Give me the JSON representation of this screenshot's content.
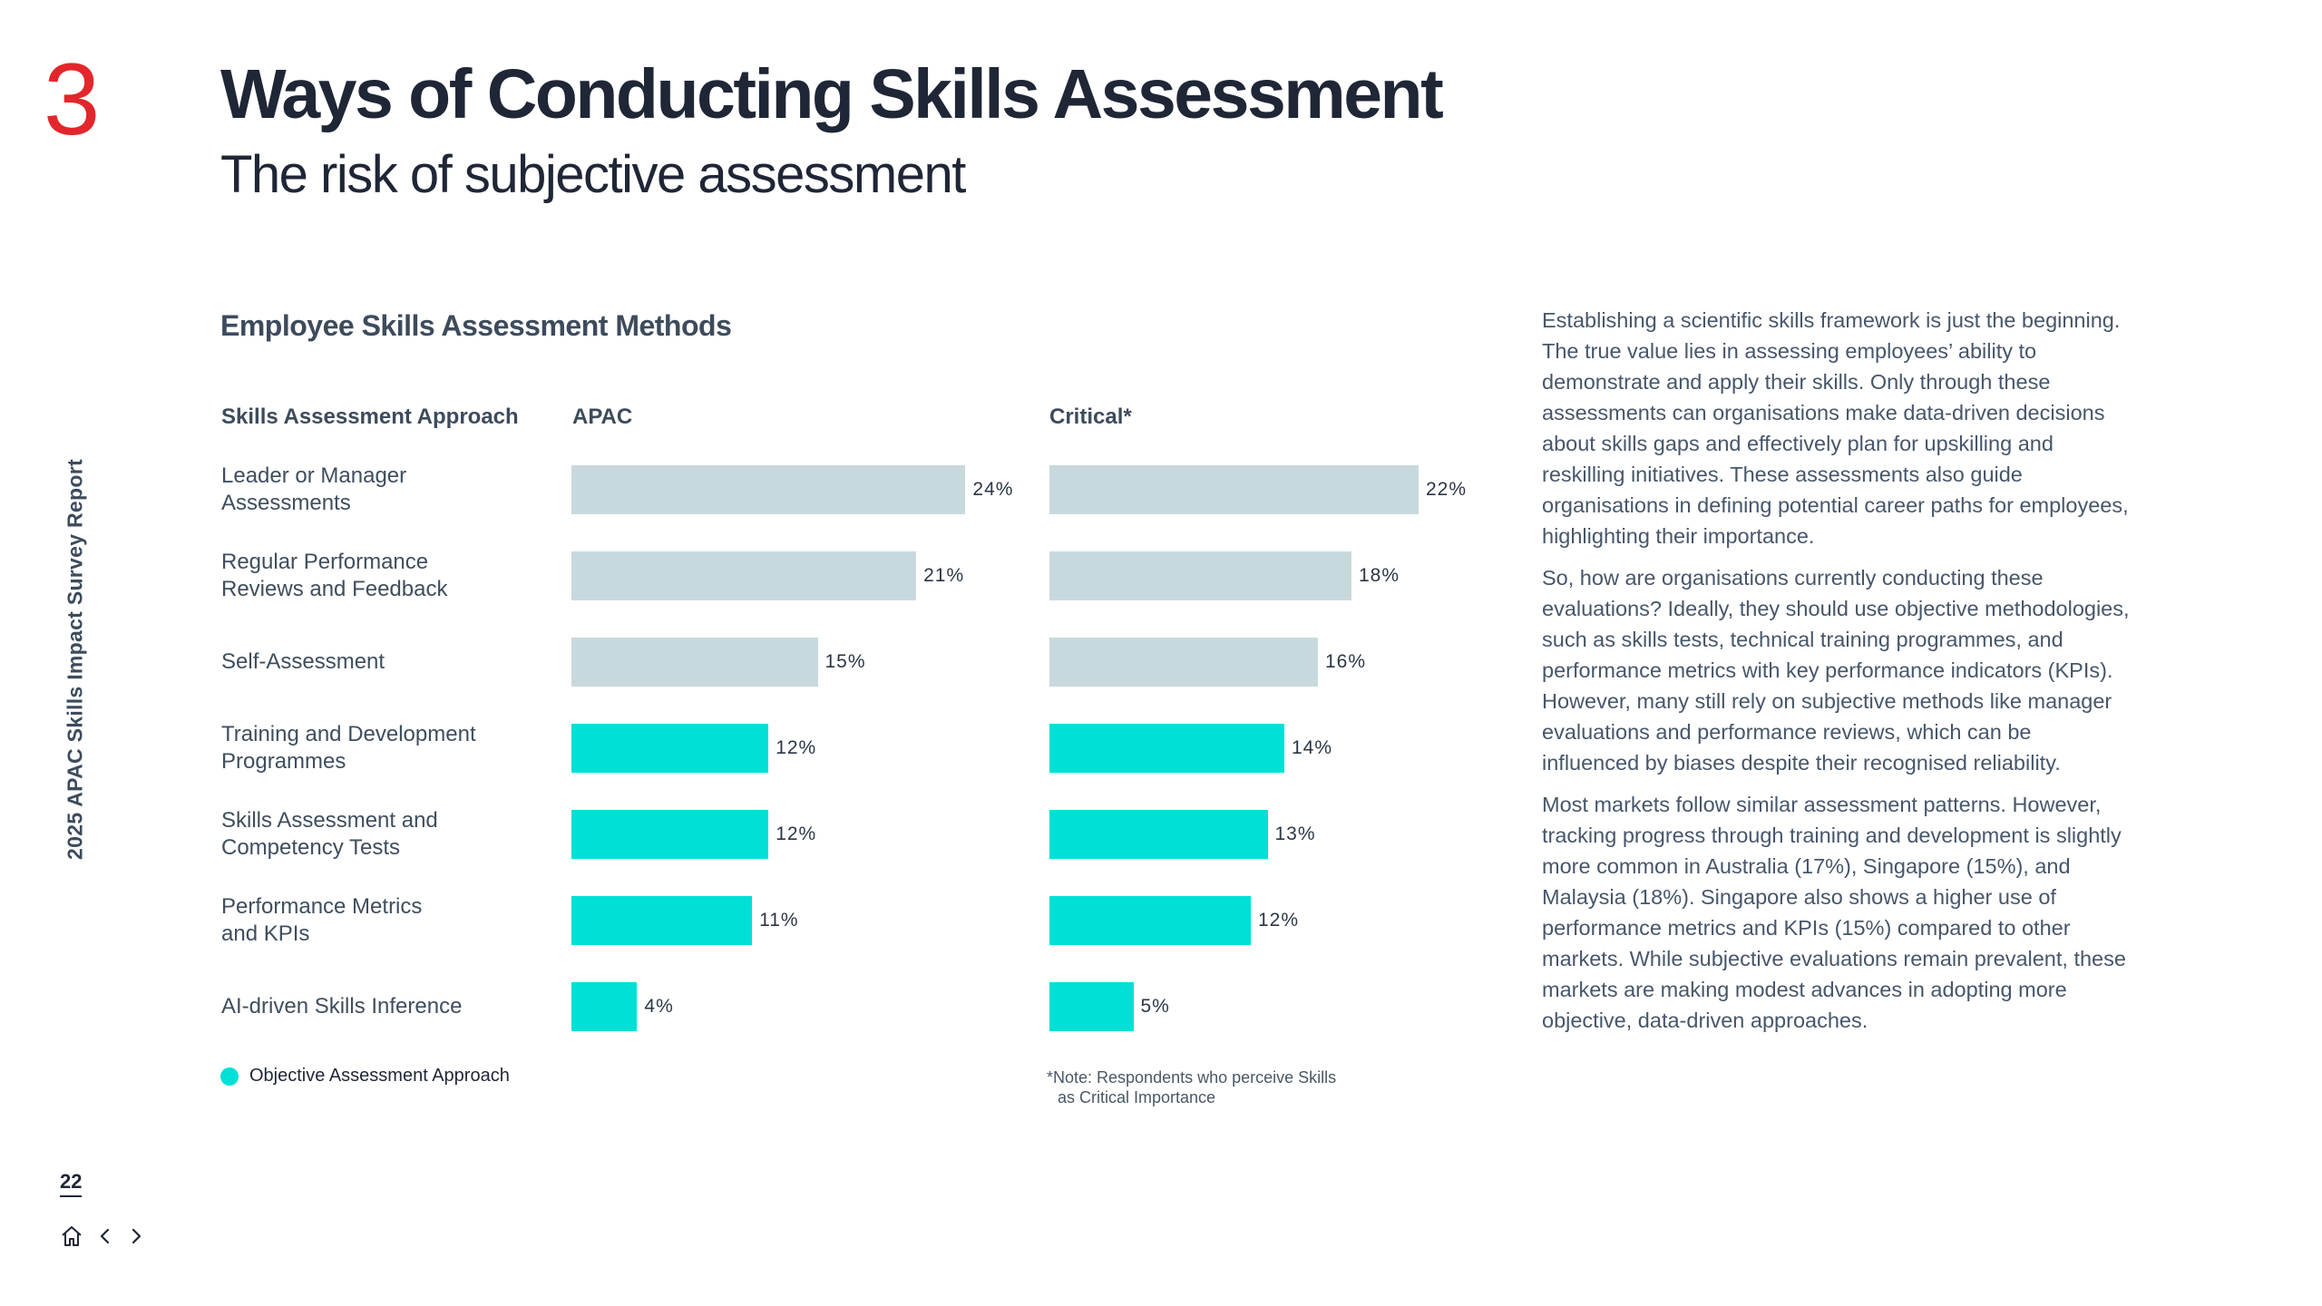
{
  "section_number": "3",
  "header": {
    "title": "Ways of Conducting Skills Assessment",
    "subtitle": "The risk of subjective assessment"
  },
  "side_label": "2025 APAC Skills Impact Survey Report",
  "page_number": "22",
  "nav": {
    "icons": [
      "home-icon",
      "chevron-left-icon",
      "chevron-right-icon"
    ]
  },
  "colors": {
    "accent": "#e3262b",
    "objective": "#00e0d6",
    "subjective": "#c8d9dd",
    "text_dark": "#1f2636"
  },
  "chart_data": {
    "type": "bar",
    "title": "Employee Skills Assessment Methods",
    "category_header": "Skills Assessment Approach",
    "unit": "%",
    "categories": [
      "Leader or Manager Assessments",
      "Regular Performance Reviews and Feedback",
      "Self-Assessment",
      "Training and Development Programmes",
      "Skills Assessment and Competency Tests",
      "Performance Metrics and KPIs",
      "AI-driven Skills Inference"
    ],
    "category_lines": [
      [
        "Leader or Manager",
        "Assessments"
      ],
      [
        "Regular Performance",
        "Reviews and Feedback"
      ],
      [
        "Self-Assessment"
      ],
      [
        "Training and Development",
        "Programmes"
      ],
      [
        "Skills Assessment and",
        "Competency Tests"
      ],
      [
        "Performance Metrics",
        "and KPIs"
      ],
      [
        "AI-driven Skills Inference"
      ]
    ],
    "objective": [
      false,
      false,
      false,
      true,
      true,
      true,
      true
    ],
    "series": [
      {
        "name": "APAC",
        "values": [
          24,
          21,
          15,
          12,
          12,
          11,
          4
        ]
      },
      {
        "name": "Critical*",
        "values": [
          22,
          18,
          16,
          14,
          13,
          12,
          5
        ]
      }
    ],
    "legend": "Objective Assessment Approach",
    "note_lines": [
      "*Note: Respondents who perceive Skills",
      "as Critical Importance"
    ]
  },
  "body": {
    "paragraphs": [
      "Establishing a scientific skills framework is just the beginning. The true value lies in assessing employees’ ability to demonstrate and apply their skills. Only through these assessments can organisations make data-driven decisions about skills gaps and effectively plan for upskilling and reskilling initiatives. These assessments also guide organisations in defining potential career paths for employees, highlighting their importance.",
      "So, how are organisations currently conducting these evaluations? Ideally, they should use objective methodologies, such as skills tests, technical training programmes, and performance metrics with key performance indicators (KPIs). However, many still rely on subjective methods like manager evaluations and performance reviews, which can be influenced by biases despite their recognised reliability.",
      "Most markets follow similar assessment patterns. However, tracking progress through training and development is slightly more common in Australia (17%), Singapore (15%), and Malaysia (18%). Singapore also shows a higher use of performance metrics and KPIs (15%) compared to other markets. While subjective evaluations remain prevalent, these markets are making modest advances in adopting more objective, data-driven approaches."
    ]
  }
}
